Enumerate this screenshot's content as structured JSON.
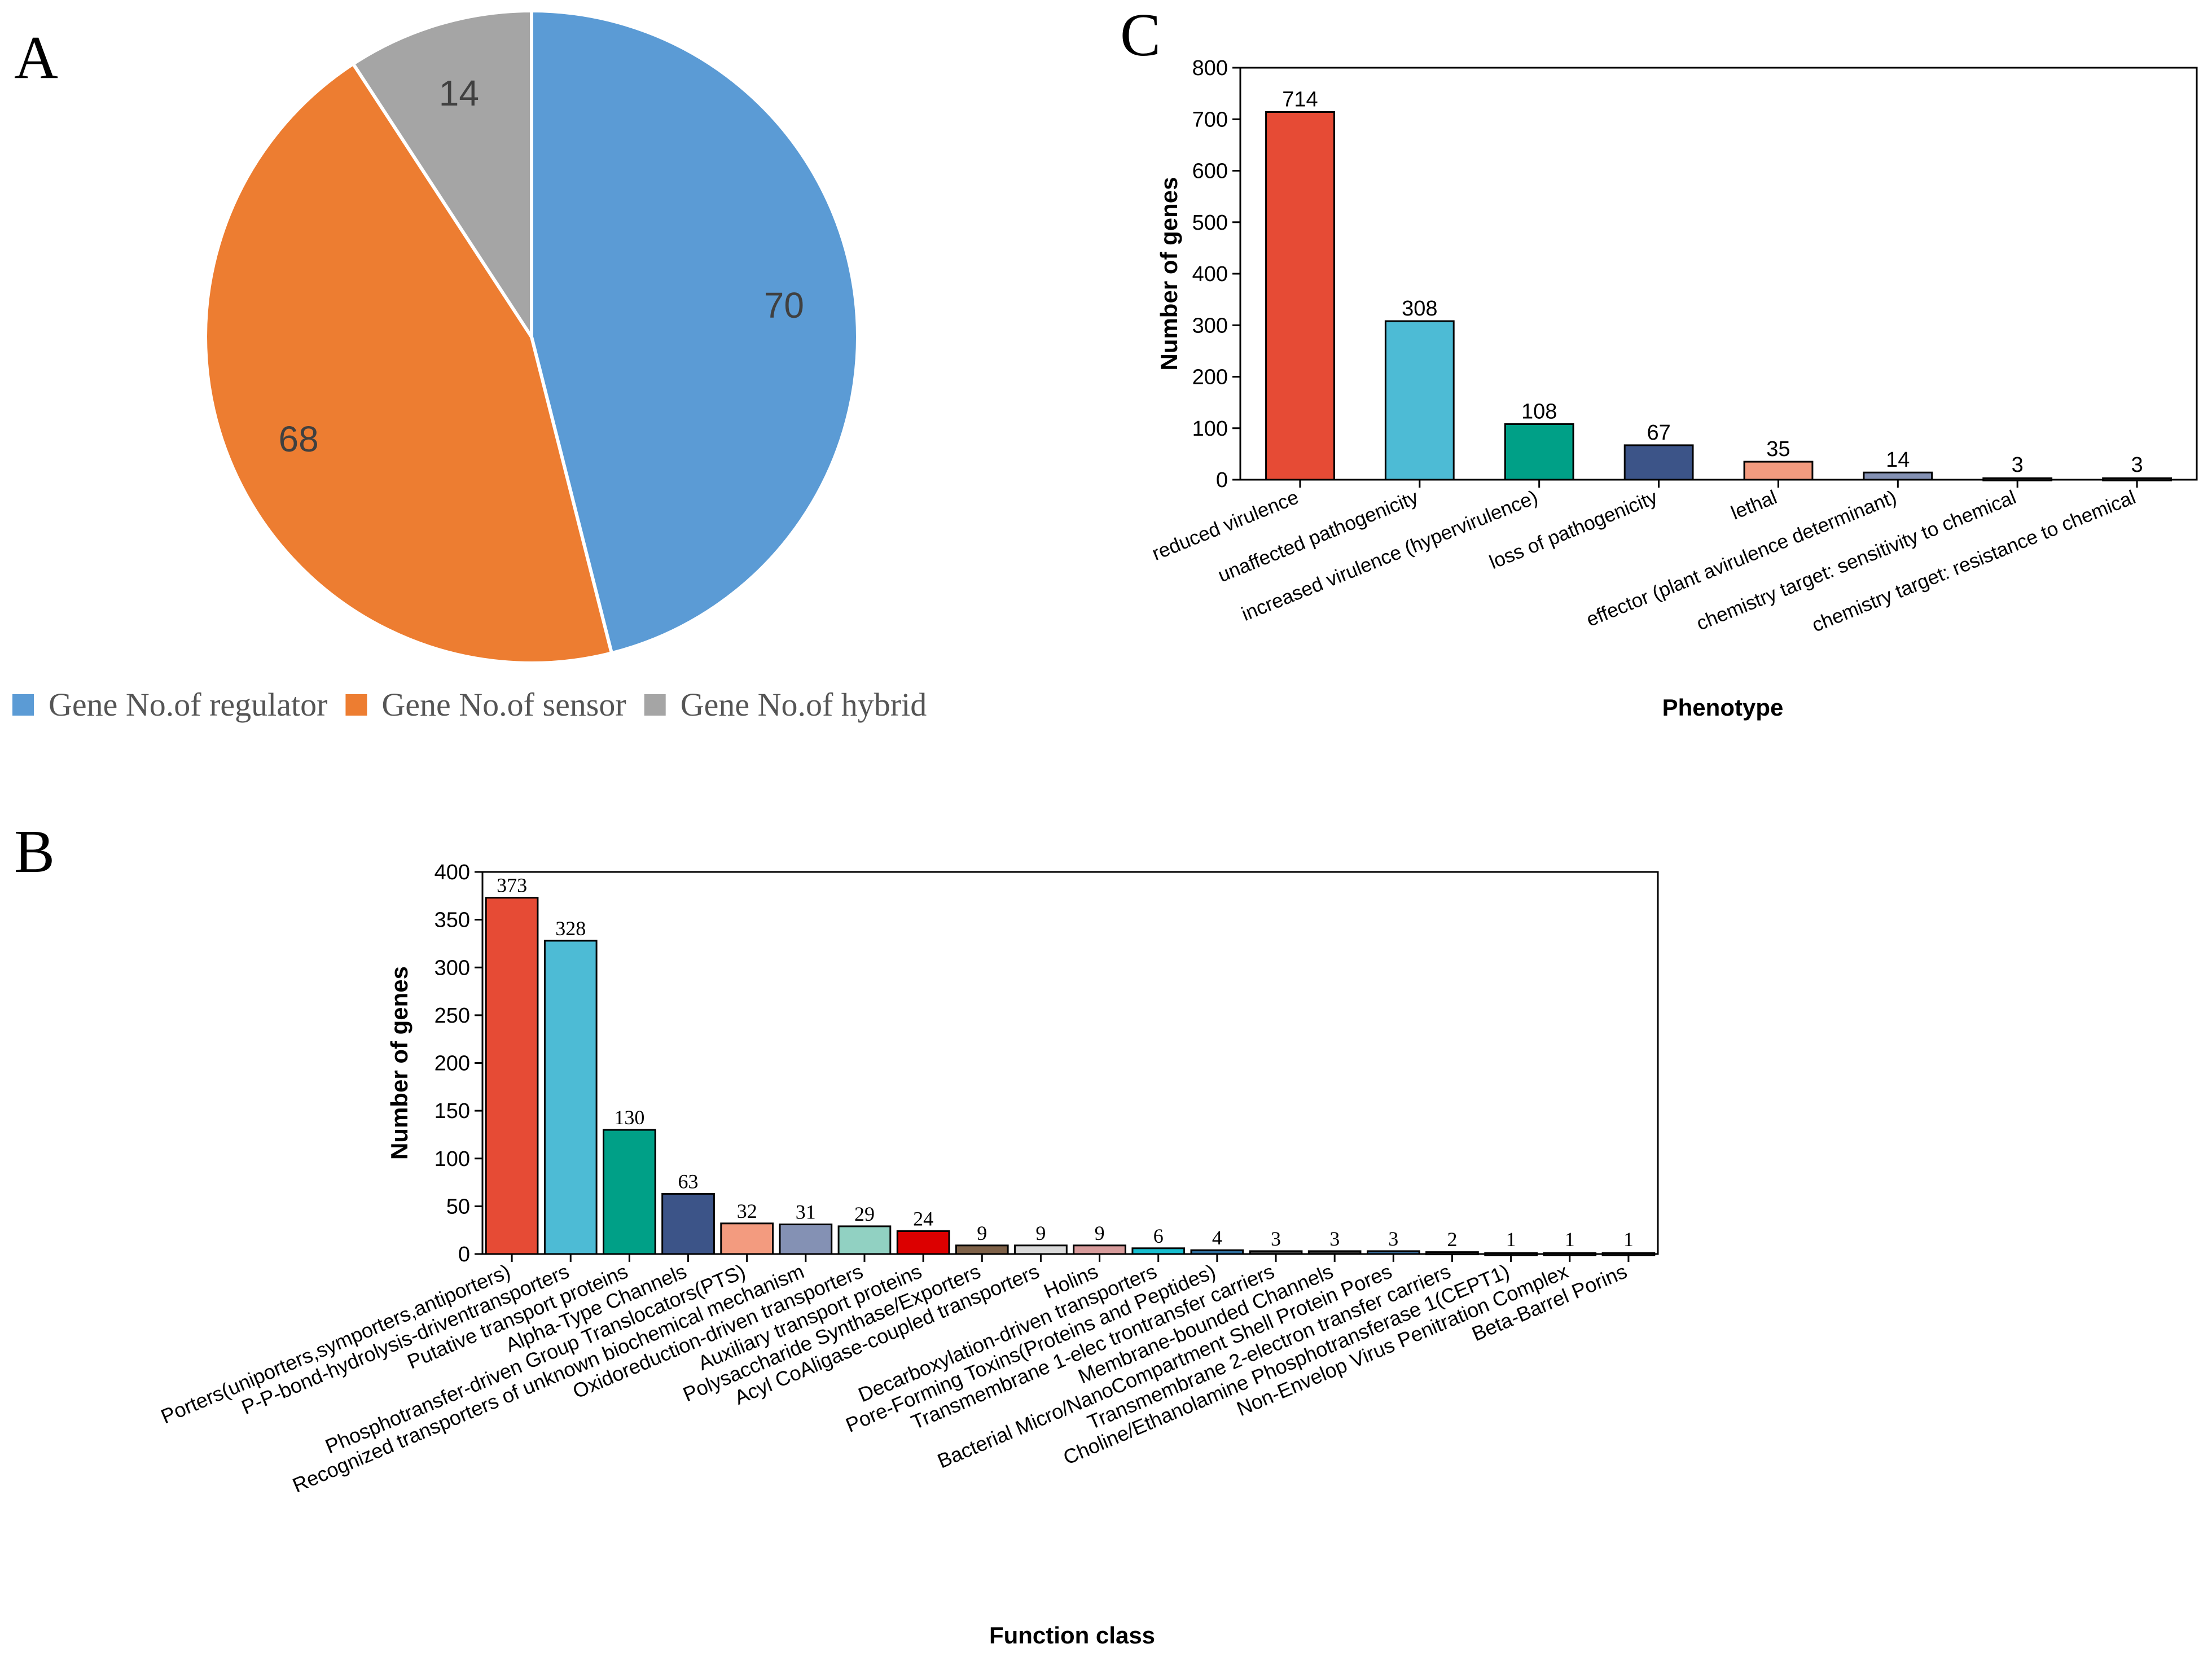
{
  "panels": {
    "a_letter": "A",
    "b_letter": "B",
    "c_letter": "C"
  },
  "chart_data": [
    {
      "panel": "A",
      "type": "pie",
      "categories": [
        "Gene No.of regulator",
        "Gene No.of sensor",
        "Gene No.of hybrid"
      ],
      "values": [
        70,
        68,
        14
      ],
      "colors": [
        "#5B9BD5",
        "#ED7D31",
        "#A5A5A5"
      ],
      "legend_position": "bottom"
    },
    {
      "panel": "B",
      "type": "bar",
      "title": "",
      "xlabel": "Function class",
      "ylabel": "Number of genes",
      "ylim": [
        0,
        400
      ],
      "yticks": [
        0,
        50,
        100,
        150,
        200,
        250,
        300,
        350,
        400
      ],
      "categories": [
        "Porters(uniporters,symporters,antiporters)",
        "P-P-bond-hydrolysis-driventransporters",
        "Putative transport proteins",
        "Alpha-Type Channels",
        "Phosphotransfer-driven Group Translocators(PTS)",
        "Recognized transporters of unknown biochemical mechanism",
        "Oxidoreduction-driven transporters",
        "Auxiliary transport proteins",
        "Polysaccharide Synthase/Exporters",
        "Acyl CoAligase-coupled transporters",
        "Holins",
        "Decarboxylation-driven transporters",
        "Pore-Forming Toxins(Proteins and Peptides)",
        "Transmembrane 1-elec trontransfer carriers",
        "Membrane-bounded Channels",
        "Bacterial Micro/NanoCompartment Shell Protein Pores",
        "Transmembrane 2-electron transfer carriers",
        "Choline/Ethanolamine Phosphotransferase 1(CEPT1)",
        "Non-Envelop Virus Penitration Complex",
        "Beta-Barrel Porins"
      ],
      "values": [
        373,
        328,
        130,
        63,
        32,
        31,
        29,
        24,
        9,
        9,
        9,
        6,
        4,
        3,
        3,
        3,
        2,
        1,
        1,
        1
      ],
      "colors": [
        "#E64B35",
        "#4DBBD5",
        "#00A087",
        "#3C5488",
        "#F39B7F",
        "#8491B4",
        "#91D1C2",
        "#DC0000",
        "#7E6148",
        "#D9D9D9",
        "#D79B9B",
        "#17BECF",
        "#2F6F9F",
        "#444444",
        "#333333",
        "#3A6E9E",
        "#222222",
        "#111111",
        "#111111",
        "#111111"
      ]
    },
    {
      "panel": "C",
      "type": "bar",
      "title": "",
      "xlabel": "Phenotype",
      "ylabel": "Number of genes",
      "ylim": [
        0,
        800
      ],
      "yticks": [
        0,
        100,
        200,
        300,
        400,
        500,
        600,
        700,
        800
      ],
      "categories": [
        "reduced virulence",
        "unaffected pathogenicity",
        "increased virulence (hypervirulence)",
        "loss of pathogenicity",
        "lethal",
        "effector (plant avirulence determinant)",
        "chemistry target: sensitivity to chemical",
        "chemistry target: resistance to chemical"
      ],
      "values": [
        714,
        308,
        108,
        67,
        35,
        14,
        3,
        3
      ],
      "colors": [
        "#E64B35",
        "#4DBBD5",
        "#00A087",
        "#3C5488",
        "#F39B7F",
        "#8491B4",
        "#1A1A1A",
        "#1A1A1A"
      ]
    }
  ]
}
